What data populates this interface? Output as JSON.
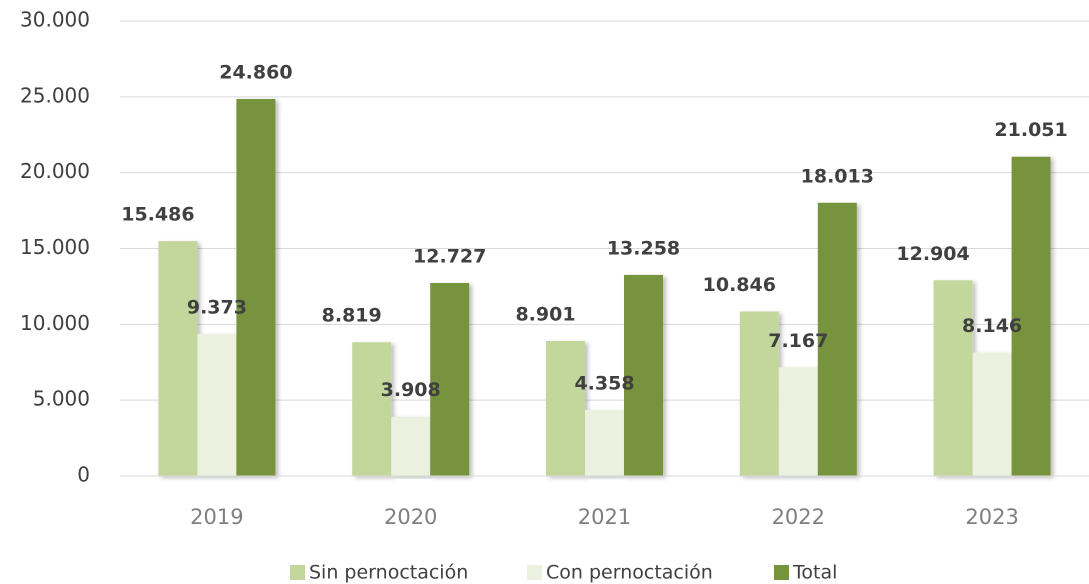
{
  "chart_data": {
    "type": "bar",
    "categories": [
      "2019",
      "2020",
      "2021",
      "2022",
      "2023"
    ],
    "series": [
      {
        "name": "Sin pernoctación",
        "color": "#c3d69b",
        "values": [
          15486,
          8819,
          8901,
          10846,
          12904
        ],
        "value_labels": [
          "15.486",
          "8.819",
          "8.901",
          "10.846",
          "12.904"
        ]
      },
      {
        "name": "Con pernoctación",
        "color": "#ebf1de",
        "values": [
          9373,
          3908,
          4358,
          7167,
          8146
        ],
        "value_labels": [
          "9.373",
          "3.908",
          "4.358",
          "7.167",
          "8.146"
        ]
      },
      {
        "name": "Total",
        "color": "#77933c",
        "values": [
          24860,
          12727,
          13258,
          18013,
          21051
        ],
        "value_labels": [
          "24.860",
          "12.727",
          "13.258",
          "18.013",
          "21.051"
        ]
      }
    ],
    "ylim": [
      0,
      30000
    ],
    "yticks": [
      0,
      {
        "value": 5000,
        "label": "5.000"
      },
      {
        "value": 10000,
        "label": "10.000"
      },
      {
        "value": 15000,
        "label": "15.000"
      },
      {
        "value": 20000,
        "label": "20.000"
      },
      {
        "value": 25000,
        "label": "25.000"
      },
      {
        "value": 30000,
        "label": "30.000"
      }
    ],
    "grid": true,
    "legend": "bottom"
  }
}
